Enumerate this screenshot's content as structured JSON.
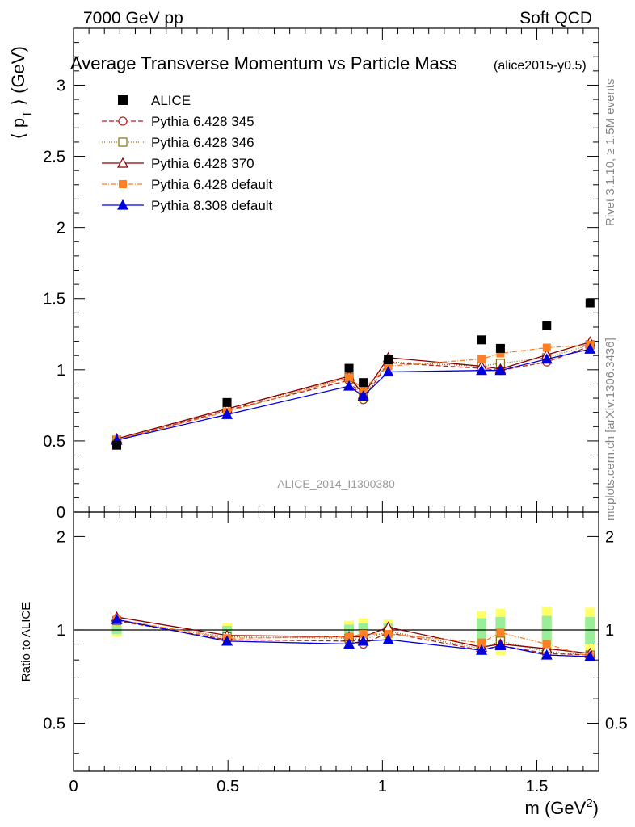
{
  "header": {
    "left": "7000 GeV pp",
    "right": "Soft QCD"
  },
  "side": {
    "rivet": "Rivet 3.1.10, ≥ 1.5M events",
    "mcplots": "mcplots.cern.ch [arXiv:1306.3436]"
  },
  "chart_data": [
    {
      "type": "line",
      "title": "Average Transverse Momentum vs Particle Mass",
      "subtitle": "(alice2015-y0.5)",
      "watermark": "ALICE_2014_I1300380",
      "xlabel": "m (GeV",
      "xlabel_sup": "2",
      "xlabel_end": ")",
      "ylabel": "⟨ p",
      "ylabel_sub": "T",
      "ylabel_end": " ⟩ (GeV)",
      "xlim": [
        0,
        1.7
      ],
      "ylim": [
        0,
        3.4
      ],
      "xticks": [
        {
          "v": 0,
          "label": "0"
        },
        {
          "v": 0.5,
          "label": "0.5"
        },
        {
          "v": 1,
          "label": "1"
        },
        {
          "v": 1.5,
          "label": "1.5"
        }
      ],
      "yticks": [
        {
          "v": 0,
          "label": "0"
        },
        {
          "v": 0.5,
          "label": "0.5"
        },
        {
          "v": 1,
          "label": "1"
        },
        {
          "v": 1.5,
          "label": "1.5"
        },
        {
          "v": 2,
          "label": "2"
        },
        {
          "v": 2.5,
          "label": "2.5"
        },
        {
          "v": 3,
          "label": "3"
        }
      ],
      "legend_position": "top-left",
      "x": [
        0.14,
        0.497,
        0.892,
        0.938,
        1.019,
        1.321,
        1.382,
        1.532,
        1.672
      ],
      "series": [
        {
          "name": "ALICE",
          "color": "#000000",
          "marker": "square-filled",
          "dash": "none",
          "values": [
            0.47,
            0.77,
            1.01,
            0.91,
            1.07,
            1.21,
            1.15,
            1.31,
            1.47
          ]
        },
        {
          "name": "Pythia 6.428 345",
          "color": "#b22222",
          "marker": "circle-open",
          "dash": "6,3",
          "values": [
            0.505,
            0.715,
            0.925,
            0.79,
            1.05,
            1.01,
            0.995,
            1.055,
            1.165
          ]
        },
        {
          "name": "Pythia 6.428 346",
          "color": "#8b6d13",
          "marker": "square-open",
          "dash": "1,2",
          "values": [
            0.505,
            0.725,
            0.945,
            0.81,
            1.055,
            1.025,
            1.045,
            1.085,
            1.175
          ]
        },
        {
          "name": "Pythia 6.428 370",
          "color": "#8b0000",
          "marker": "triangle-open",
          "dash": "none",
          "values": [
            0.515,
            0.725,
            0.955,
            0.825,
            1.085,
            1.025,
            1.005,
            1.105,
            1.195
          ]
        },
        {
          "name": "Pythia 6.428 default",
          "color": "#ff7f24",
          "marker": "square-filled",
          "dash": "6,2,1,2",
          "values": [
            0.505,
            0.705,
            0.945,
            0.865,
            1.025,
            1.075,
            1.115,
            1.155,
            1.175
          ]
        },
        {
          "name": "Pythia 8.308 default",
          "color": "#0000dd",
          "marker": "triangle-filled",
          "dash": "none",
          "values": [
            0.505,
            0.685,
            0.885,
            0.815,
            0.985,
            0.995,
            0.995,
            1.075,
            1.145
          ]
        }
      ]
    },
    {
      "type": "line",
      "title": "",
      "ylabel": "Ratio to ALICE",
      "xlim": [
        0,
        1.7
      ],
      "ylim": [
        0.35,
        2.4
      ],
      "yscale": "log",
      "yticks": [
        {
          "v": 0.5,
          "label": "0.5"
        },
        {
          "v": 1,
          "label": "1"
        },
        {
          "v": 2,
          "label": "2"
        }
      ],
      "reference_line": 1,
      "x": [
        0.14,
        0.497,
        0.892,
        0.938,
        1.019,
        1.321,
        1.382,
        1.532,
        1.672
      ],
      "uncertainty_bands": {
        "yellow_color": "#ffff66",
        "green_color": "#99ee99",
        "outer": [
          0.05,
          0.05,
          0.07,
          0.09,
          0.08,
          0.15,
          0.17,
          0.19,
          0.18
        ],
        "inner": [
          0.03,
          0.03,
          0.04,
          0.05,
          0.05,
          0.09,
          0.1,
          0.11,
          0.1
        ]
      },
      "series": [
        {
          "name": "Pythia 6.428 345",
          "color": "#b22222",
          "marker": "circle-open",
          "dash": "6,3",
          "values": [
            1.07,
            0.93,
            0.92,
            0.9,
            0.98,
            0.86,
            0.89,
            0.84,
            0.83
          ]
        },
        {
          "name": "Pythia 6.428 346",
          "color": "#8b6d13",
          "marker": "square-open",
          "dash": "1,2",
          "values": [
            1.07,
            0.95,
            0.94,
            0.93,
            0.99,
            0.87,
            0.92,
            0.85,
            0.83
          ]
        },
        {
          "name": "Pythia 6.428 370",
          "color": "#8b0000",
          "marker": "triangle-open",
          "dash": "none",
          "values": [
            1.1,
            0.96,
            0.95,
            0.95,
            1.02,
            0.88,
            0.9,
            0.87,
            0.84
          ]
        },
        {
          "name": "Pythia 6.428 default",
          "color": "#ff7f24",
          "marker": "square-filled",
          "dash": "6,2,1,2",
          "values": [
            1.08,
            0.94,
            0.95,
            0.97,
            0.97,
            0.91,
            0.98,
            0.9,
            0.82
          ]
        },
        {
          "name": "Pythia 8.308 default",
          "color": "#0000dd",
          "marker": "triangle-filled",
          "dash": "none",
          "values": [
            1.08,
            0.92,
            0.9,
            0.92,
            0.93,
            0.86,
            0.89,
            0.83,
            0.82
          ]
        }
      ]
    }
  ]
}
